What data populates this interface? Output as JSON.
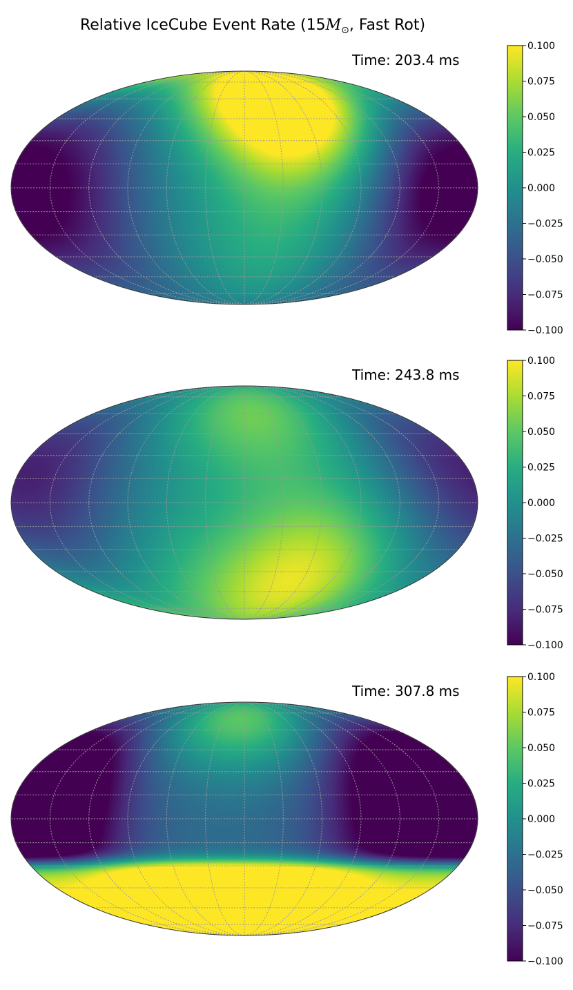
{
  "chart_data": {
    "type": "heatmap",
    "projection": "mollweide",
    "title": "Relative IceCube Event Rate (15M☉, Fast Rot)",
    "title_parts": {
      "prefix": "Relative IceCube Event Rate (15",
      "symbol": "M",
      "subscript": "⊙",
      "suffix": ", Fast Rot)"
    },
    "colormap": "viridis",
    "colorbar": {
      "range": [
        -0.1,
        0.1
      ],
      "ticks": [
        -0.1,
        -0.075,
        -0.05,
        -0.025,
        0.0,
        0.025,
        0.05,
        0.075,
        0.1
      ],
      "tick_labels": [
        "−0.100",
        "−0.075",
        "−0.050",
        "−0.025",
        "0.000",
        "0.025",
        "0.050",
        "0.075",
        "0.100"
      ]
    },
    "grid": true,
    "panels": [
      {
        "time_label": "Time: 203.4 ms",
        "time_ms": 203.4,
        "field": {
          "base": -0.005,
          "blobs": [
            {
              "lon": 40,
              "lat": 60,
              "amp": 0.18,
              "width": 35
            },
            {
              "lon": -140,
              "lat": 0,
              "amp": -0.08,
              "width": 45
            },
            {
              "lon": 150,
              "lat": 0,
              "amp": -0.09,
              "width": 40
            },
            {
              "lon": 20,
              "lat": -30,
              "amp": 0.03,
              "width": 40
            }
          ]
        }
      },
      {
        "time_label": "Time: 243.8 ms",
        "time_ms": 243.8,
        "field": {
          "base": -0.01,
          "blobs": [
            {
              "lon": 10,
              "lat": 65,
              "amp": 0.07,
              "width": 35
            },
            {
              "lon": 60,
              "lat": -45,
              "amp": 0.08,
              "width": 40
            },
            {
              "lon": -150,
              "lat": 5,
              "amp": -0.05,
              "width": 45
            },
            {
              "lon": -20,
              "lat": -60,
              "amp": 0.04,
              "width": 45
            },
            {
              "lon": 160,
              "lat": 30,
              "amp": -0.04,
              "width": 40
            }
          ]
        }
      },
      {
        "time_label": "Time: 307.8 ms",
        "time_ms": 307.8,
        "field": {
          "base": -0.03,
          "south_cap": {
            "lat_edge": -28,
            "amp": 0.2
          },
          "blobs": [
            {
              "lon": -150,
              "lat": 10,
              "amp": -0.12,
              "width": 40
            },
            {
              "lon": 130,
              "lat": 10,
              "amp": -0.12,
              "width": 45
            },
            {
              "lon": 0,
              "lat": 75,
              "amp": 0.1,
              "width": 30
            }
          ]
        }
      }
    ]
  }
}
